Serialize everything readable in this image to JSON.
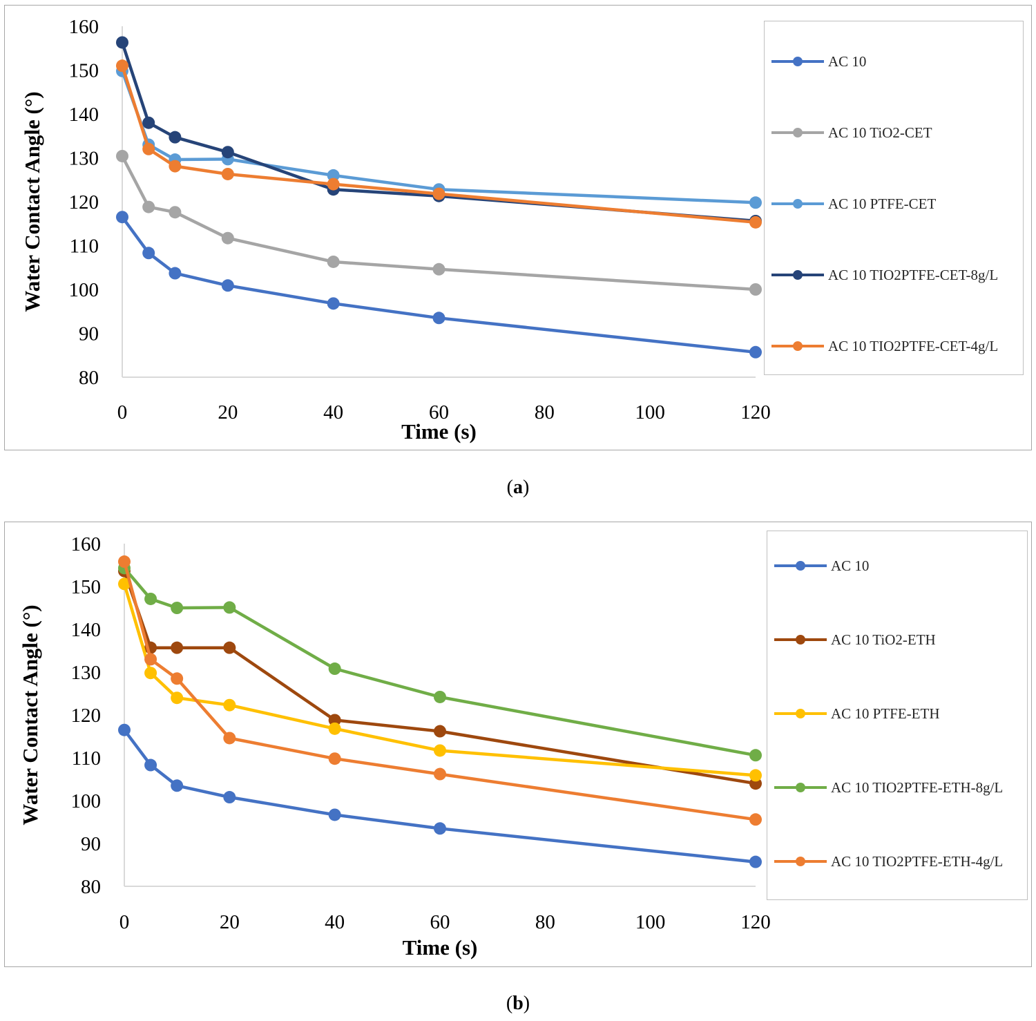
{
  "captions": {
    "a": {
      "open": "(",
      "letter": "a",
      "close": ")"
    },
    "b": {
      "open": "(",
      "letter": "b",
      "close": ")"
    }
  },
  "chart_data": [
    {
      "id": "a",
      "type": "line",
      "title": "",
      "xlabel": "Time (s)",
      "ylabel": "Water Contact Angle (°)",
      "xlim": [
        0,
        120
      ],
      "ylim": [
        80,
        160
      ],
      "xticks": [
        0,
        20,
        40,
        60,
        80,
        100,
        120
      ],
      "yticks": [
        80,
        90,
        100,
        110,
        120,
        130,
        140,
        150,
        160
      ],
      "grid": false,
      "legend_position": "right",
      "x": [
        0,
        5,
        10,
        20,
        40,
        60,
        120
      ],
      "series": [
        {
          "name": "AC 10",
          "color": "#4472c4",
          "values": [
            116.5,
            108.3,
            103.7,
            100.9,
            96.8,
            93.5,
            85.7
          ]
        },
        {
          "name": "AC 10 TiO2-CET",
          "color": "#a5a5a5",
          "values": [
            130.4,
            118.8,
            117.6,
            111.7,
            106.3,
            104.6,
            100.0
          ]
        },
        {
          "name": "AC 10 PTFE-CET",
          "color": "#5b9bd5",
          "values": [
            149.8,
            133.0,
            129.6,
            129.7,
            126.0,
            122.8,
            119.8
          ]
        },
        {
          "name": "AC 10 TIO2PTFE-CET-8g/L",
          "color": "#264478",
          "values": [
            156.3,
            138.0,
            134.7,
            131.3,
            122.8,
            121.3,
            115.6
          ]
        },
        {
          "name": "AC 10 TIO2PTFE-CET-4g/L",
          "color": "#ed7d31",
          "values": [
            151.0,
            132.0,
            128.1,
            126.3,
            124.0,
            121.8,
            115.3
          ]
        }
      ]
    },
    {
      "id": "b",
      "type": "line",
      "title": "",
      "xlabel": "Time (s)",
      "ylabel": "Water Contact Angle (°)",
      "xlim": [
        0,
        120
      ],
      "ylim": [
        80,
        160
      ],
      "xticks": [
        0,
        20,
        40,
        60,
        80,
        100,
        120
      ],
      "yticks": [
        80,
        90,
        100,
        110,
        120,
        130,
        140,
        150,
        160
      ],
      "grid": false,
      "legend_position": "right",
      "x": [
        0,
        5,
        10,
        20,
        40,
        60,
        120
      ],
      "series": [
        {
          "name": "AC 10",
          "color": "#4472c4",
          "values": [
            116.5,
            108.3,
            103.5,
            100.8,
            96.7,
            93.5,
            85.7
          ]
        },
        {
          "name": "AC 10 TiO2-ETH",
          "color": "#9e480e",
          "values": [
            153.6,
            135.7,
            135.7,
            135.7,
            118.8,
            116.2,
            104.0
          ]
        },
        {
          "name": "AC 10 PTFE-ETH",
          "color": "#ffc000",
          "values": [
            150.6,
            129.8,
            124.0,
            122.3,
            116.8,
            111.7,
            105.9
          ]
        },
        {
          "name": "AC 10 TIO2PTFE-ETH-8g/L",
          "color": "#70ad47",
          "values": [
            154.3,
            147.1,
            145.0,
            145.1,
            130.8,
            124.2,
            110.6
          ]
        },
        {
          "name": "AC 10 TIO2PTFE-ETH-4g/L",
          "color": "#ed7d31",
          "values": [
            155.8,
            133.0,
            128.5,
            114.6,
            109.8,
            106.2,
            95.6
          ]
        }
      ]
    }
  ]
}
